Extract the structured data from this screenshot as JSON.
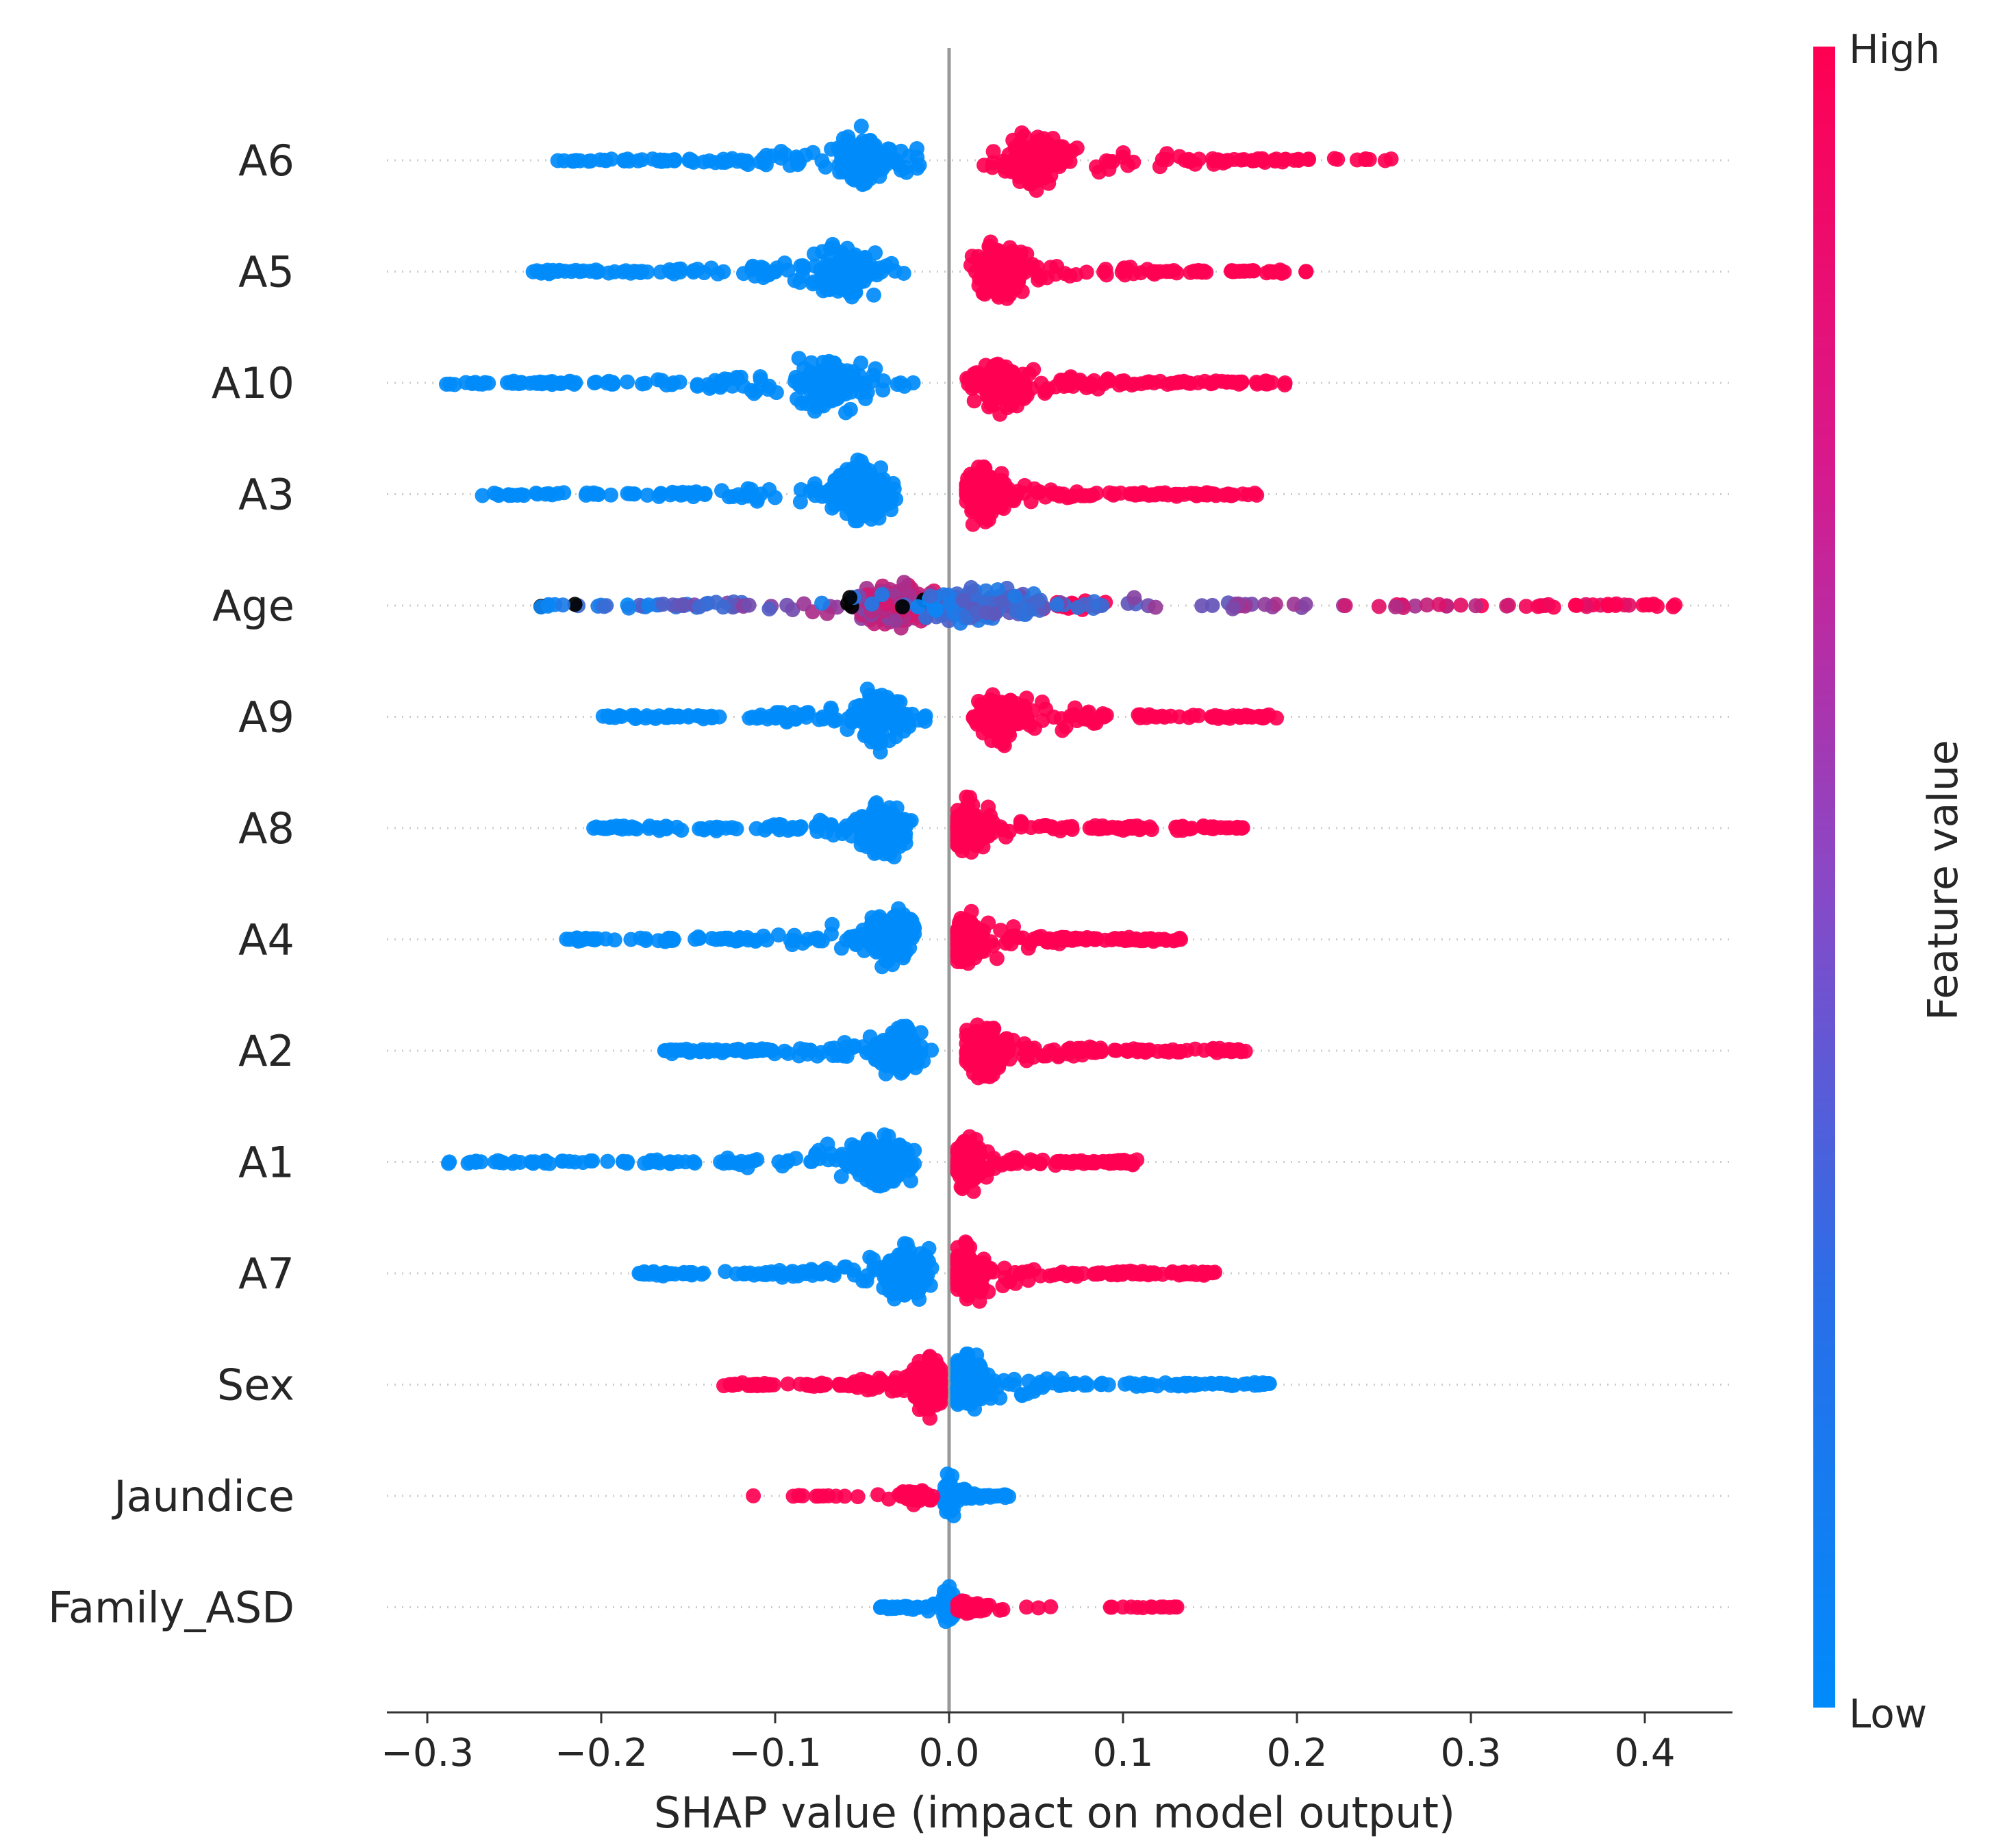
{
  "chart_data": {
    "type": "scatter",
    "subtype": "shap-beeswarm-summary",
    "xlabel": "SHAP value (impact on model output)",
    "xlim": [
      -0.33,
      0.45
    ],
    "xticks": [
      -0.3,
      -0.2,
      -0.1,
      0.0,
      0.1,
      0.2,
      0.3,
      0.4
    ],
    "xtick_labels": [
      "−0.3",
      "−0.2",
      "−0.1",
      "0.0",
      "0.1",
      "0.2",
      "0.3",
      "0.4"
    ],
    "zero_line": 0.0,
    "features": [
      {
        "name": "A6",
        "low_range": [
          -0.225,
          -0.015
        ],
        "high_range": [
          0.015,
          0.255
        ],
        "low_mode": -0.05,
        "high_mode": 0.05,
        "low_color": "low",
        "high_color": "high"
      },
      {
        "name": "A5",
        "low_range": [
          -0.24,
          -0.025
        ],
        "high_range": [
          0.01,
          0.21
        ],
        "low_mode": -0.06,
        "high_mode": 0.03,
        "low_color": "low",
        "high_color": "high"
      },
      {
        "name": "A10",
        "low_range": [
          -0.29,
          -0.02
        ],
        "high_range": [
          0.01,
          0.195
        ],
        "low_mode": -0.07,
        "high_mode": 0.03,
        "low_color": "low",
        "high_color": "high"
      },
      {
        "name": "A3",
        "low_range": [
          -0.27,
          -0.025
        ],
        "high_range": [
          0.01,
          0.18
        ],
        "low_mode": -0.05,
        "high_mode": 0.02,
        "low_color": "low",
        "high_color": "high"
      },
      {
        "name": "Age",
        "low_range": [
          -0.235,
          0.09
        ],
        "high_range": [
          -0.08,
          0.42
        ],
        "low_mode": -0.03,
        "high_mode": 0.02,
        "low_color": "low",
        "high_color": "high",
        "mixed": true
      },
      {
        "name": "A9",
        "low_range": [
          -0.2,
          -0.01
        ],
        "high_range": [
          0.01,
          0.19
        ],
        "low_mode": -0.04,
        "high_mode": 0.03,
        "low_color": "low",
        "high_color": "high"
      },
      {
        "name": "A8",
        "low_range": [
          -0.205,
          -0.02
        ],
        "high_range": [
          0.005,
          0.17
        ],
        "low_mode": -0.04,
        "high_mode": 0.01,
        "low_color": "low",
        "high_color": "high"
      },
      {
        "name": "A4",
        "low_range": [
          -0.22,
          -0.02
        ],
        "high_range": [
          0.005,
          0.135
        ],
        "low_mode": -0.035,
        "high_mode": 0.01,
        "low_color": "low",
        "high_color": "high"
      },
      {
        "name": "A2",
        "low_range": [
          -0.17,
          -0.01
        ],
        "high_range": [
          0.01,
          0.175
        ],
        "low_mode": -0.03,
        "high_mode": 0.02,
        "low_color": "low",
        "high_color": "high"
      },
      {
        "name": "A1",
        "low_range": [
          -0.29,
          -0.02
        ],
        "high_range": [
          0.005,
          0.11
        ],
        "low_mode": -0.04,
        "high_mode": 0.01,
        "low_color": "low",
        "high_color": "high"
      },
      {
        "name": "A7",
        "low_range": [
          -0.18,
          -0.01
        ],
        "high_range": [
          0.005,
          0.155
        ],
        "low_mode": -0.025,
        "high_mode": 0.01,
        "low_color": "low",
        "high_color": "high"
      },
      {
        "name": "Sex",
        "low_range": [
          0.005,
          0.185
        ],
        "high_range": [
          -0.13,
          -0.005
        ],
        "low_mode": 0.01,
        "high_mode": -0.01,
        "low_color": "low",
        "high_color": "high"
      },
      {
        "name": "Jaundice",
        "low_range": [
          -0.005,
          0.035
        ],
        "high_range": [
          -0.115,
          -0.005
        ],
        "low_mode": 0.0,
        "high_mode": -0.02,
        "low_color": "low",
        "high_color": "high"
      },
      {
        "name": "Family_ASD",
        "low_range": [
          -0.04,
          0.005
        ],
        "high_range": [
          0.005,
          0.135
        ],
        "low_mode": 0.0,
        "high_mode": 0.01,
        "low_color": "low",
        "high_color": "high"
      }
    ],
    "colorbar": {
      "title": "Feature value",
      "high_label": "High",
      "low_label": "Low",
      "low_color": "#008bfb",
      "high_color": "#ff0052"
    }
  }
}
